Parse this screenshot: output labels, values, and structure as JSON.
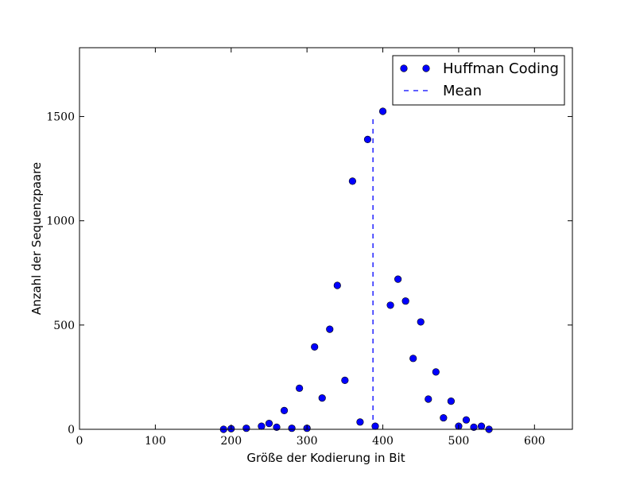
{
  "chart_data": {
    "type": "scatter",
    "xlabel": "Größe der Kodierung in Bit",
    "ylabel": "Anzahl der Sequenzpaare",
    "xlim": [
      0,
      650
    ],
    "ylim": [
      0,
      1830
    ],
    "xticks": [
      0,
      100,
      200,
      300,
      400,
      500,
      600
    ],
    "yticks": [
      0,
      500,
      1000,
      1500
    ],
    "grid": false,
    "legend_position": "top-right",
    "series": [
      {
        "name": "Huffman Coding",
        "kind": "markers",
        "color": "#0000ff",
        "x": [
          190,
          200,
          220,
          240,
          250,
          260,
          270,
          280,
          290,
          300,
          310,
          320,
          330,
          340,
          350,
          360,
          370,
          380,
          390,
          400,
          410,
          420,
          430,
          440,
          450,
          460,
          470,
          480,
          490,
          500,
          510,
          520,
          530,
          540
        ],
        "y": [
          0,
          3,
          5,
          15,
          28,
          10,
          90,
          5,
          197,
          5,
          395,
          150,
          480,
          690,
          235,
          1190,
          35,
          1390,
          15,
          1525,
          595,
          720,
          615,
          340,
          515,
          145,
          275,
          55,
          135,
          15,
          45,
          10,
          15,
          0
        ]
      },
      {
        "name": "Mean",
        "kind": "dashed-line",
        "color": "#0000ff",
        "x": [
          387,
          387
        ],
        "y": [
          0,
          1500
        ]
      }
    ]
  }
}
